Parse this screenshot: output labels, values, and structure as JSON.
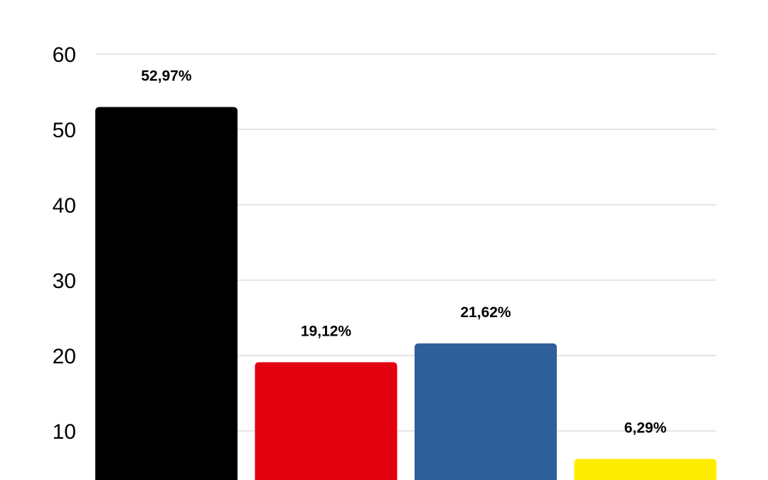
{
  "chart_data": {
    "type": "bar",
    "title": "",
    "xlabel": "",
    "ylabel": "",
    "ylim": [
      0,
      60
    ],
    "yticks": [
      10,
      20,
      30,
      40,
      50,
      60
    ],
    "grid": true,
    "values": [
      52.97,
      19.12,
      21.62,
      6.29
    ],
    "data_labels": [
      "52,97%",
      "19,12%",
      "21,62%",
      "6,29%"
    ],
    "colors": [
      "#000000",
      "#e3000f",
      "#2f5f98",
      "#ffed00"
    ],
    "gridline_color": "#cccccc"
  }
}
